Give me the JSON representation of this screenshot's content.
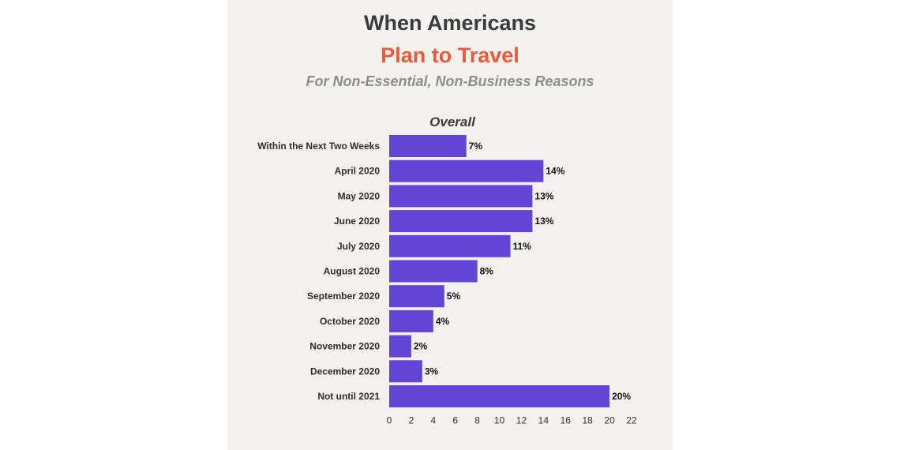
{
  "header": {
    "title_line1": "When Americans",
    "title_line2": "Plan to Travel",
    "subtitle": "For Non-Essential, Non-Business Reasons"
  },
  "colors": {
    "bar": "#6244d6",
    "title": "#3b3b3b",
    "accent": "#ee5a37",
    "subtitle": "#8e8e8e",
    "panel": "#f2f1ef"
  },
  "chart_data": {
    "type": "bar",
    "orientation": "horizontal",
    "title": "Overall",
    "xlabel": "",
    "ylabel": "",
    "categories": [
      "Within the Next Two Weeks",
      "April 2020",
      "May 2020",
      "June 2020",
      "July 2020",
      "August 2020",
      "September 2020",
      "October 2020",
      "November 2020",
      "December 2020",
      "Not until 2021"
    ],
    "values": [
      7,
      14,
      13,
      13,
      11,
      8,
      5,
      4,
      2,
      3,
      20
    ],
    "value_labels": [
      "7%",
      "14%",
      "13%",
      "13%",
      "11%",
      "8%",
      "5%",
      "4%",
      "2%",
      "3%",
      "20%"
    ],
    "xlim": [
      0,
      22
    ],
    "x_ticks": [
      0,
      2,
      4,
      6,
      8,
      10,
      12,
      14,
      16,
      18,
      20,
      22
    ],
    "grid": false,
    "legend": "none"
  }
}
